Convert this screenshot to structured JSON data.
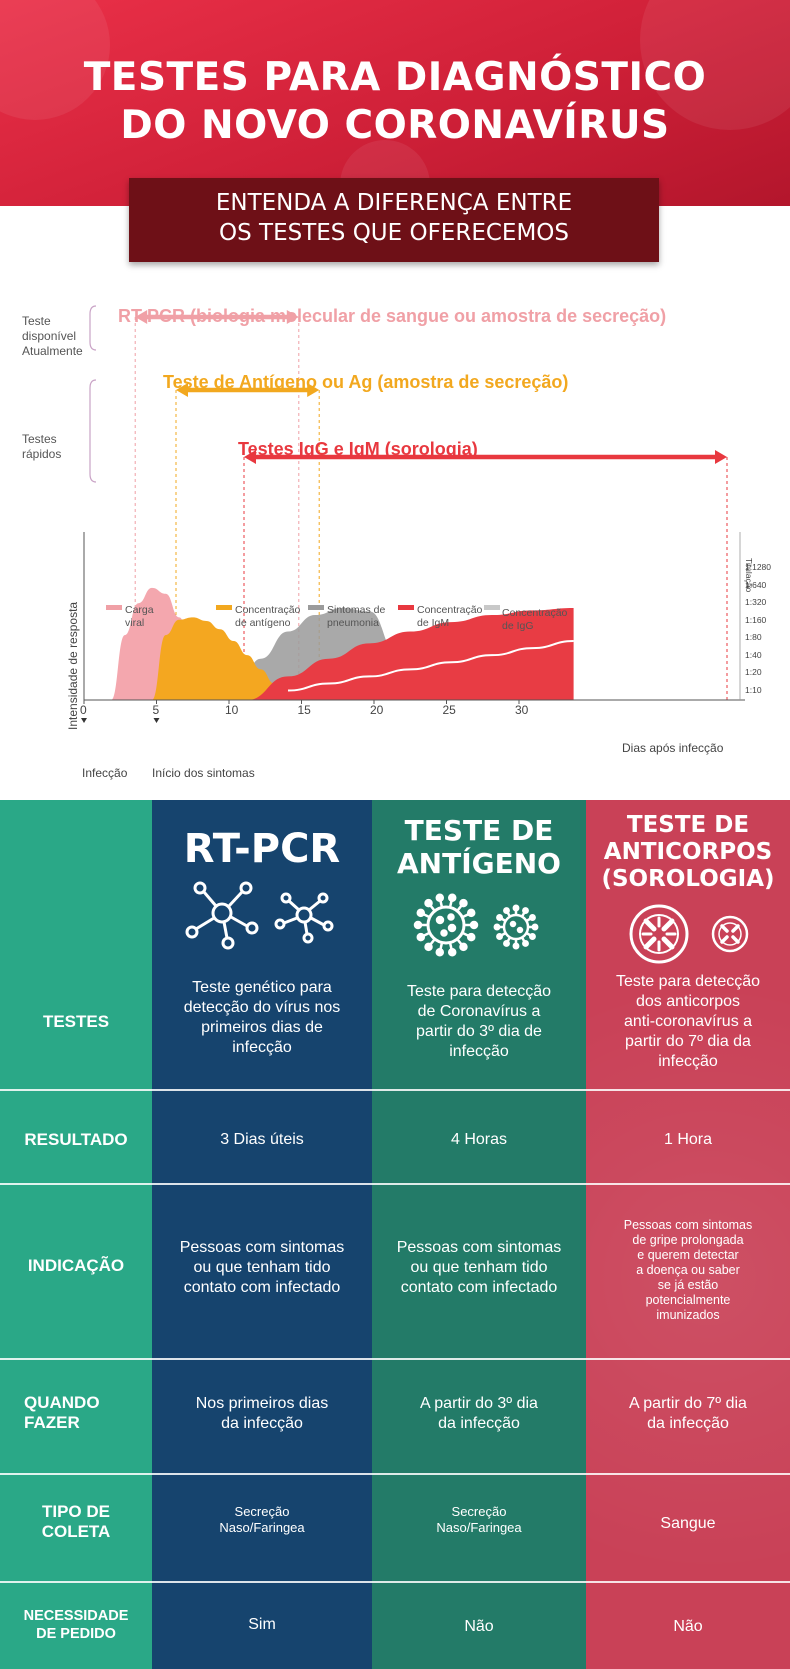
{
  "header": {
    "title_line1": "TESTES PARA DIAGNÓSTICO",
    "title_line2": "DO NOVO CORONAVÍRUS",
    "subtitle_line1": "ENTENDA A DIFERENÇA ENTRE",
    "subtitle_line2": "OS TESTES QUE OFERECEMOS",
    "colors": {
      "header_red": "#d82540",
      "subtitle_box": "#6e1017"
    }
  },
  "timeline": {
    "side_labels": {
      "available_line1": "Teste",
      "available_line2": "disponível",
      "available_line3": "Atualmente",
      "rapid_line1": "Testes",
      "rapid_line2": "rápidos"
    },
    "ranges": [
      {
        "label": "RT-PCR (biologia molecular de sangue ou amostra de secreção)",
        "color": "#f0a0a6"
      },
      {
        "label": "Teste de Antígeno ou Ag (amostra de secreção)",
        "color": "#f2a81f"
      },
      {
        "label": "Testes IgG e IgM (sorologia)",
        "color": "#e8383f"
      }
    ],
    "legend": [
      {
        "line1": "Carga",
        "line2": "viral",
        "color": "#f0a0a6"
      },
      {
        "line1": "Concentração",
        "line2": "de antígeno",
        "color": "#f2a81f"
      },
      {
        "line1": "Sintomas de",
        "line2": "pneumonia",
        "color": "#9b9b9b"
      },
      {
        "line1": "Concentração",
        "line2": "de IgM",
        "color": "#e8383f"
      },
      {
        "line1": "Concentração",
        "line2": "de IgG",
        "color": "#c8c8c8"
      }
    ],
    "y_axis_label": "Intensidade de resposta",
    "right_axis_label": "Titulação",
    "right_ticks": [
      "1:1280",
      "1:640",
      "1:320",
      "1:160",
      "1:80",
      "1:40",
      "1:20",
      "1:10"
    ],
    "x_ticks": [
      "0",
      "5",
      "10",
      "15",
      "20",
      "25",
      "30"
    ],
    "x_axis_label": "Dias após infecção",
    "marker_labels": {
      "infection": "Infecção",
      "symptom_start": "Início dos sintomas"
    }
  },
  "chart_data": {
    "type": "area",
    "title": "",
    "xlabel": "Dias após infecção",
    "ylabel": "Intensidade de resposta",
    "xlim": [
      0,
      32
    ],
    "x_ticks": [
      0,
      5,
      10,
      15,
      20,
      25,
      30
    ],
    "ranges": [
      {
        "name": "RT-PCR (biologia molecular de sangue ou amostra de secreção)",
        "start": 2,
        "end": 15.5
      },
      {
        "name": "Teste de Antígeno ou Ag (amostra de secreção)",
        "start": 5,
        "end": 17
      },
      {
        "name": "Testes IgG e IgM (sorologia)",
        "start": 10,
        "end": 47
      }
    ],
    "series": [
      {
        "name": "Carga viral",
        "x": [
          2,
          3,
          4,
          5,
          6,
          7,
          8,
          9,
          10,
          11,
          12
        ],
        "values": [
          0,
          55,
          82,
          95,
          90,
          70,
          40,
          18,
          6,
          2,
          0
        ]
      },
      {
        "name": "Concentração de antígeno",
        "x": [
          5,
          6,
          7,
          8,
          9,
          10,
          11,
          12,
          13,
          14,
          15,
          16
        ],
        "values": [
          0,
          55,
          68,
          70,
          67,
          60,
          50,
          38,
          26,
          14,
          5,
          0
        ]
      },
      {
        "name": "Sintomas de pneumonia",
        "x": [
          11,
          13,
          15,
          17,
          19,
          21,
          23,
          24
        ],
        "values": [
          0,
          35,
          58,
          72,
          78,
          75,
          40,
          0
        ]
      },
      {
        "name": "Concentração de IgM",
        "x": [
          12,
          15,
          18,
          21,
          24,
          27,
          30,
          33,
          36
        ],
        "values": [
          0,
          20,
          35,
          48,
          58,
          66,
          72,
          76,
          78
        ]
      },
      {
        "name": "Concentração de IgG",
        "x": [
          15,
          18,
          21,
          24,
          27,
          30,
          33,
          36
        ],
        "values": [
          8,
          14,
          20,
          26,
          32,
          38,
          44,
          50
        ]
      }
    ],
    "events": [
      {
        "name": "Infecção",
        "x": 0
      },
      {
        "name": "Início dos sintomas",
        "x": 5
      }
    ]
  },
  "table": {
    "columns": [
      {
        "title_lines": [
          "RT-PCR"
        ],
        "icon": "molecule-icon"
      },
      {
        "title_lines": [
          "TESTE DE",
          "ANTÍGENO"
        ],
        "icon": "virus-icon"
      },
      {
        "title_lines": [
          "TESTE DE",
          "ANTICORPOS",
          "(SOROLOGIA)"
        ],
        "icon": "antibody-icon"
      }
    ],
    "rows": [
      {
        "label_lines": [
          "TESTES"
        ],
        "values": [
          [
            "Teste genético para",
            "detecção do vírus nos",
            "primeiros dias de",
            "infecção"
          ],
          [
            "Teste para detecção",
            "de Coronavírus a",
            "partir do 3º dia de",
            "infecção"
          ],
          [
            "Teste para detecção",
            "dos anticorpos",
            "anti-coronavírus a",
            "partir do 7º dia da",
            "infecção"
          ]
        ]
      },
      {
        "label_lines": [
          "RESULTADO"
        ],
        "values": [
          [
            "3 Dias úteis"
          ],
          [
            "4 Horas"
          ],
          [
            "1 Hora"
          ]
        ]
      },
      {
        "label_lines": [
          "INDICAÇÃO"
        ],
        "values": [
          [
            "Pessoas com sintomas",
            "ou que tenham tido",
            "contato com infectado"
          ],
          [
            "Pessoas com sintomas",
            "ou que tenham tido",
            "contato com infectado"
          ],
          [
            "Pessoas com sintomas",
            "de gripe prolongada",
            "e querem detectar",
            "a doença ou saber",
            "se já estão",
            "potencialmente",
            "imunizados"
          ]
        ]
      },
      {
        "label_lines": [
          "QUANDO",
          "FAZER"
        ],
        "values": [
          [
            "Nos primeiros dias",
            "da infecção"
          ],
          [
            "A partir do 3º dia",
            "da infecção"
          ],
          [
            "A partir do 7º dia",
            "da infecção"
          ]
        ]
      },
      {
        "label_lines": [
          "TIPO DE",
          "COLETA"
        ],
        "values": [
          [
            "Secreção",
            "Naso/Faringea"
          ],
          [
            "Secreção",
            "Naso/Faringea"
          ],
          [
            "Sangue"
          ]
        ]
      },
      {
        "label_lines": [
          "NECESSIDADE",
          "DE PEDIDO"
        ],
        "values": [
          [
            "Sim"
          ],
          [
            "Não"
          ],
          [
            "Não"
          ]
        ]
      }
    ],
    "colors": {
      "label_column": "#2aa887",
      "rt_pcr": "#16446e",
      "antigen": "#237b68",
      "antibody": "#c94157"
    }
  }
}
